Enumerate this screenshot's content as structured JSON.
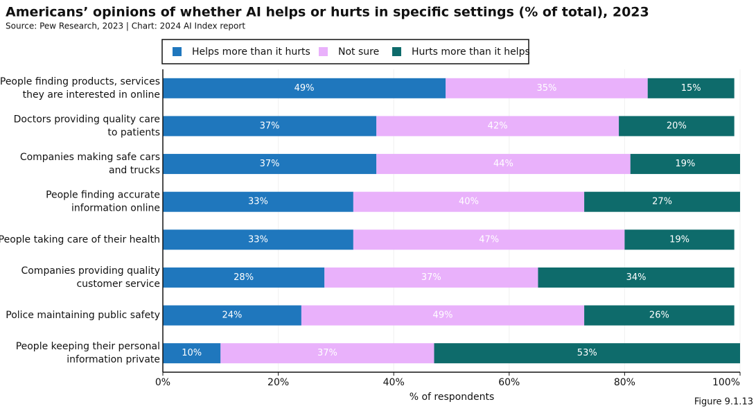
{
  "chart_data": {
    "type": "stacked-bar-horizontal",
    "title": "Americans’ opinions of whether AI helps or hurts in specific settings (% of total), 2023",
    "subtitle": "Source: Pew Research, 2023 | Chart: 2024 AI Index report",
    "x_label": "% of respondents",
    "footer": "Figure 9.1.13",
    "categories": [
      "People finding products, services\nthey are interested in online",
      "Doctors providing quality care\nto patients",
      "Companies making safe cars\nand trucks",
      "People finding accurate\ninformation online",
      "People taking care of their health",
      "Companies providing quality\ncustomer service",
      "Police maintaining public safety",
      "People keeping their personal\ninformation private"
    ],
    "series": [
      {
        "name": "Helps more than it hurts",
        "color": "#1f77bd",
        "values": [
          49,
          37,
          37,
          33,
          33,
          28,
          24,
          10
        ],
        "value_labels": [
          "49%",
          "37%",
          "37%",
          "33%",
          "33%",
          "28%",
          "24%",
          "10%"
        ]
      },
      {
        "name": "Not sure",
        "color": "#e9b1fb",
        "values": [
          35,
          42,
          44,
          40,
          47,
          37,
          49,
          37
        ],
        "value_labels": [
          "35%",
          "42%",
          "44%",
          "40%",
          "47%",
          "37%",
          "49%",
          "37%"
        ]
      },
      {
        "name": "Hurts more than it helps",
        "color": "#0e6b6b",
        "values": [
          15,
          20,
          19,
          27,
          19,
          34,
          26,
          53
        ],
        "value_labels": [
          "15%",
          "20%",
          "19%",
          "27%",
          "19%",
          "34%",
          "26%",
          "53%"
        ]
      }
    ],
    "xlim": [
      0,
      100
    ],
    "xticks": [
      {
        "value": 0,
        "label": "0%"
      },
      {
        "value": 20,
        "label": "20%"
      },
      {
        "value": 40,
        "label": "40%"
      },
      {
        "value": 60,
        "label": "60%"
      },
      {
        "value": 80,
        "label": "80%"
      },
      {
        "value": 100,
        "label": "100%"
      }
    ],
    "grid": true
  }
}
